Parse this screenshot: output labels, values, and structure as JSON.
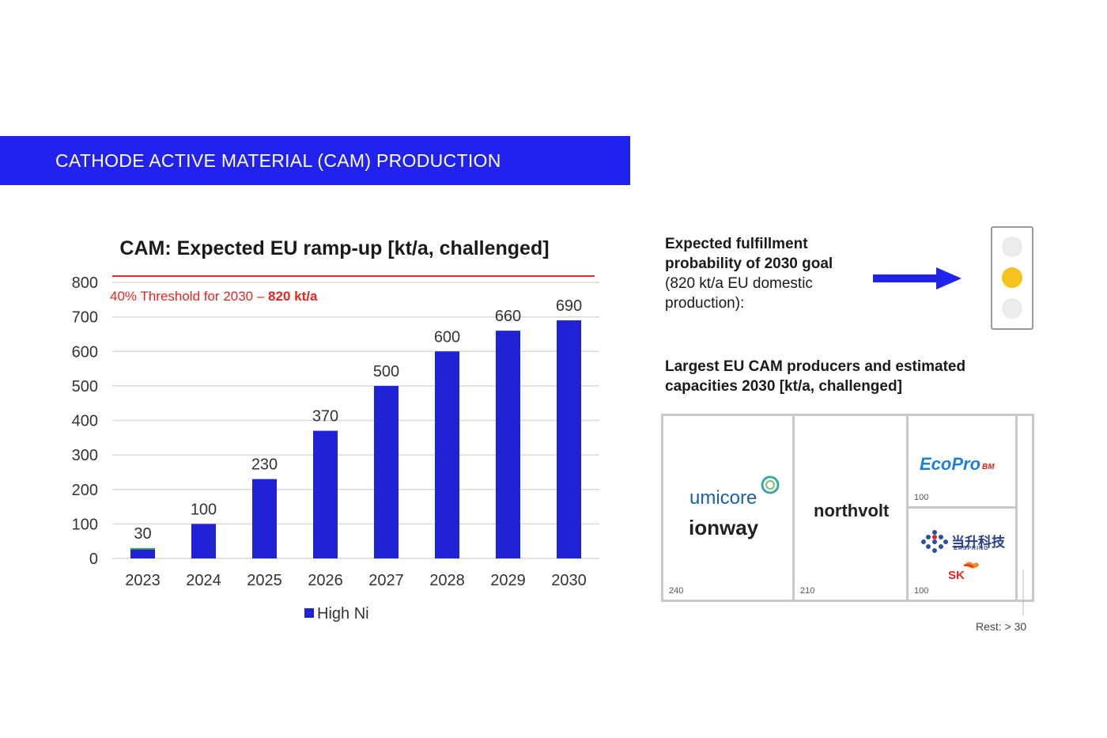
{
  "banner": {
    "title": "CATHODE ACTIVE MATERIAL (CAM) PRODUCTION"
  },
  "chart_data": {
    "type": "bar",
    "title": "CAM: Expected EU ramp-up [kt/a, challenged]",
    "categories": [
      "2023",
      "2024",
      "2025",
      "2026",
      "2027",
      "2028",
      "2029",
      "2030"
    ],
    "series": [
      {
        "name": "High Ni",
        "values": [
          30,
          100,
          230,
          370,
          500,
          600,
          660,
          690
        ],
        "color": "#2121d6"
      }
    ],
    "data_labels": [
      "30",
      "100",
      "230",
      "370",
      "500",
      "600",
      "660",
      "690"
    ],
    "ylim": [
      0,
      800
    ],
    "yticks": [
      0,
      100,
      200,
      300,
      400,
      500,
      600,
      700,
      800
    ],
    "threshold": {
      "value": 820,
      "label": "40% Threshold for 2030 – ",
      "label_bold": "820 kt/a",
      "color": "#e8261e"
    },
    "legend": "bottom-center",
    "grid": true
  },
  "probability": {
    "heading_line1": "Expected fulfillment",
    "heading_line2": "probability of 2030 goal",
    "detail_line1": "(820 kt/a EU domestic",
    "detail_line2": "production):",
    "traffic_light": {
      "active": "yellow",
      "active_color": "#f6c21d"
    }
  },
  "producers": {
    "heading_line1": "Largest EU CAM producers and estimated",
    "heading_line2": "capacities 2030 [kt/a, challenged]",
    "cells": [
      {
        "logos": [
          "umicore",
          "ionway"
        ],
        "capacity": "240"
      },
      {
        "logos": [
          "northvolt"
        ],
        "capacity": "210"
      },
      {
        "logos": [
          "EcoPro",
          "BM"
        ],
        "capacity": "100"
      },
      {
        "logos": [
          "当升科技",
          "EASPRING",
          "SK"
        ],
        "capacity": "100"
      }
    ],
    "rest": "Rest: > 30"
  },
  "colors": {
    "accent": "#2222ee",
    "bar": "#2121d6",
    "threshold": "#e8261e",
    "ecopro": "#1f7fd1",
    "sk": "#e8261e"
  }
}
